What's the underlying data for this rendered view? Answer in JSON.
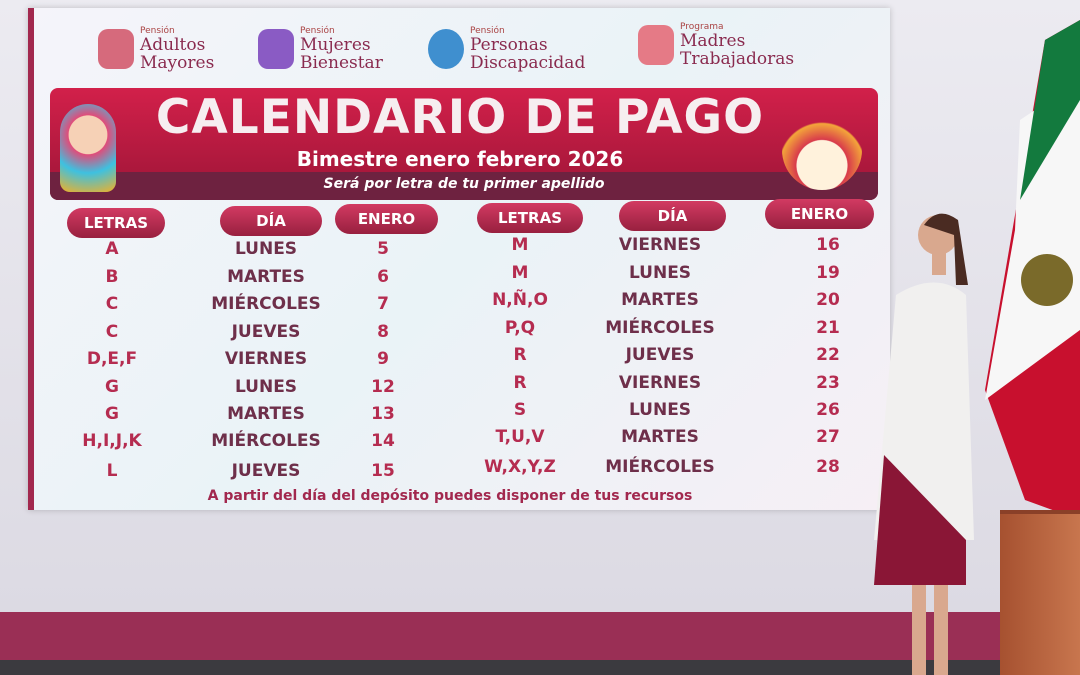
{
  "logos": [
    {
      "small": "Pensión",
      "line1": "Adultos",
      "line2": "Mayores",
      "color": "#d66a7c"
    },
    {
      "small": "Pensión",
      "line1": "Mujeres",
      "line2": "Bienestar",
      "color": "#8a5bc4"
    },
    {
      "small": "Pensión",
      "line1": "Personas",
      "line2": "Discapacidad",
      "color": "#3f8fcf"
    },
    {
      "small": "Programa",
      "line1": "Madres",
      "line2": "Trabajadoras",
      "color": "#e57a86"
    }
  ],
  "banner": {
    "title": "CALENDARIO DE PAGO",
    "subtitle": "Bimestre enero febrero 2026",
    "note": "Será por letra de tu primer apellido"
  },
  "headers": {
    "letters": "LETRAS",
    "day": "DÍA",
    "month": "ENERO"
  },
  "left_rows": [
    {
      "letters": "A",
      "day": "LUNES",
      "date": "5"
    },
    {
      "letters": "B",
      "day": "MARTES",
      "date": "6"
    },
    {
      "letters": "C",
      "day": "MIÉRCOLES",
      "date": "7"
    },
    {
      "letters": "C",
      "day": "JUEVES",
      "date": "8"
    },
    {
      "letters": "D,E,F",
      "day": "VIERNES",
      "date": "9"
    },
    {
      "letters": "G",
      "day": "LUNES",
      "date": "12"
    },
    {
      "letters": "G",
      "day": "MARTES",
      "date": "13"
    },
    {
      "letters": "H,I,J,K",
      "day": "MIÉRCOLES",
      "date": "14"
    },
    {
      "letters": "L",
      "day": "JUEVES",
      "date": "15"
    }
  ],
  "right_rows": [
    {
      "letters": "M",
      "day": "VIERNES",
      "date": "16"
    },
    {
      "letters": "M",
      "day": "LUNES",
      "date": "19"
    },
    {
      "letters": "N,Ñ,O",
      "day": "MARTES",
      "date": "20"
    },
    {
      "letters": "P,Q",
      "day": "MIÉRCOLES",
      "date": "21"
    },
    {
      "letters": "R",
      "day": "JUEVES",
      "date": "22"
    },
    {
      "letters": "R",
      "day": "VIERNES",
      "date": "23"
    },
    {
      "letters": "S",
      "day": "LUNES",
      "date": "26"
    },
    {
      "letters": "T,U,V",
      "day": "MARTES",
      "date": "27"
    },
    {
      "letters": "W,X,Y,Z",
      "day": "MIÉRCOLES",
      "date": "28"
    }
  ],
  "footer": "A partir del día del depósito puedes disponer de tus recursos"
}
